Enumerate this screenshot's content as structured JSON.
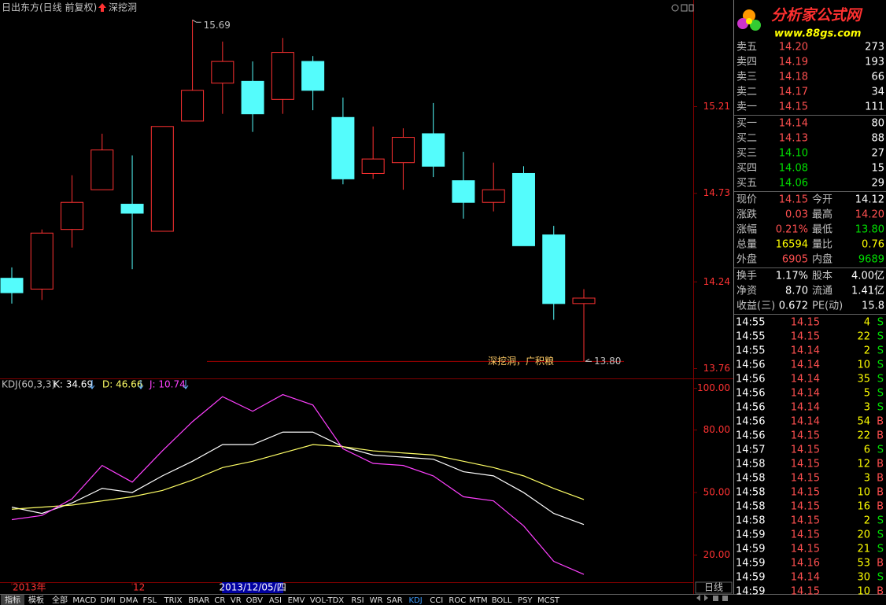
{
  "chart_data": [
    {
      "type": "candlestick",
      "title": "日出东方(日线 前复权)",
      "indicator": "深挖洞",
      "categories": [
        "2013年",
        null,
        null,
        null,
        "12",
        null,
        null,
        null,
        "2013/12/05/四",
        null,
        null,
        null,
        null,
        null,
        null,
        null,
        null,
        null,
        null,
        null
      ],
      "cursor_index": 8,
      "open": [
        14.26,
        14.2,
        14.53,
        14.75,
        14.67,
        14.52,
        15.13,
        15.34,
        15.35,
        15.25,
        15.46,
        15.15,
        14.84,
        14.9,
        15.06,
        14.8,
        14.68,
        14.84,
        14.5,
        14.12
      ],
      "high": [
        14.32,
        14.53,
        14.83,
        15.06,
        14.94,
        15.1,
        15.69,
        15.57,
        15.46,
        15.59,
        15.49,
        15.26,
        15.1,
        15.09,
        15.23,
        14.96,
        14.9,
        14.88,
        14.55,
        14.2
      ],
      "low": [
        14.12,
        14.14,
        14.43,
        14.75,
        14.31,
        14.52,
        15.13,
        15.17,
        15.07,
        15.17,
        15.19,
        14.78,
        14.81,
        14.75,
        14.82,
        14.59,
        14.63,
        14.44,
        14.03,
        13.8
      ],
      "close": [
        14.18,
        14.51,
        14.68,
        14.97,
        14.62,
        15.1,
        15.3,
        15.46,
        15.17,
        15.51,
        15.3,
        14.81,
        14.92,
        15.04,
        14.88,
        14.68,
        14.75,
        14.44,
        14.12,
        14.15
      ],
      "up_color": "#ff3232",
      "down_color": "#54fcfc",
      "ylim": [
        13.71,
        15.8
      ],
      "yticks": [
        15.21,
        14.73,
        14.24,
        13.76
      ],
      "annotations": [
        {
          "text": "15.69",
          "value": 15.69
        },
        {
          "text": "13.80",
          "value": 13.8
        },
        {
          "text": "深挖洞，广积粮"
        }
      ],
      "period": "日线"
    },
    {
      "type": "line",
      "title": "KDJ(60,3,3)",
      "series": [
        {
          "name": "K: 34.69",
          "color": "#ffffff",
          "values": [
            43,
            40,
            45,
            52,
            50,
            58,
            65,
            73,
            73,
            79,
            79,
            72,
            68,
            67,
            66,
            60,
            58,
            50,
            40,
            34.69
          ]
        },
        {
          "name": "D: 46.66",
          "color": "#ffff66",
          "values": [
            42,
            43,
            44,
            46,
            48,
            51,
            56,
            62,
            65,
            69,
            73,
            72,
            70,
            69,
            68,
            65,
            62,
            58,
            52,
            46.66
          ]
        },
        {
          "name": "J: 10.74",
          "color": "#ff40ff",
          "values": [
            37,
            39,
            47,
            63,
            55,
            70,
            84,
            96,
            89,
            97,
            92,
            71,
            64,
            63,
            58,
            48,
            46,
            34,
            17,
            10.74
          ]
        }
      ],
      "ylim": [
        7,
        104
      ],
      "yticks": [
        {
          "value": 100,
          "label": "100.00"
        },
        {
          "value": 80,
          "label": "80.00"
        },
        {
          "value": 50,
          "label": "50.00"
        },
        {
          "value": 20,
          "label": "20.00"
        }
      ]
    }
  ],
  "logo": {
    "name": "分析家公式网",
    "url": "www.88gs.com"
  },
  "order_book": {
    "asks": [
      {
        "label": "卖五",
        "price": "14.20",
        "volume": "273",
        "color": "#ff5050"
      },
      {
        "label": "卖四",
        "price": "14.19",
        "volume": "193",
        "color": "#ff5050"
      },
      {
        "label": "卖三",
        "price": "14.18",
        "volume": "66",
        "color": "#ff5050"
      },
      {
        "label": "卖二",
        "price": "14.17",
        "volume": "34",
        "color": "#ff5050"
      },
      {
        "label": "卖一",
        "price": "14.15",
        "volume": "111",
        "color": "#ff5050"
      }
    ],
    "bids": [
      {
        "label": "买一",
        "price": "14.14",
        "volume": "80",
        "color": "#ff5050"
      },
      {
        "label": "买二",
        "price": "14.13",
        "volume": "88",
        "color": "#ff5050"
      },
      {
        "label": "买三",
        "price": "14.10",
        "volume": "27",
        "color": "#00e000"
      },
      {
        "label": "买四",
        "price": "14.08",
        "volume": "15",
        "color": "#00e000"
      },
      {
        "label": "买五",
        "price": "14.06",
        "volume": "29",
        "color": "#00e000"
      }
    ]
  },
  "quote": [
    [
      {
        "label": "现价",
        "value": "14.15",
        "color": "#ff5050"
      },
      {
        "label": "今开",
        "value": "14.12",
        "color": "#ffffff"
      }
    ],
    [
      {
        "label": "涨跌",
        "value": "0.03",
        "color": "#ff5050"
      },
      {
        "label": "最高",
        "value": "14.20",
        "color": "#ff5050"
      }
    ],
    [
      {
        "label": "涨幅",
        "value": "0.21%",
        "color": "#ff5050"
      },
      {
        "label": "最低",
        "value": "13.80",
        "color": "#00e000"
      }
    ],
    [
      {
        "label": "总量",
        "value": "16594",
        "color": "#ffff00"
      },
      {
        "label": "量比",
        "value": "0.76",
        "color": "#ffff00"
      }
    ],
    [
      {
        "label": "外盘",
        "value": "6905",
        "color": "#ff5050"
      },
      {
        "label": "内盘",
        "value": "9689",
        "color": "#00e000"
      }
    ],
    [
      {
        "label": "换手",
        "value": "1.17%",
        "color": "#ffffff"
      },
      {
        "label": "股本",
        "value": "4.00亿",
        "color": "#ffffff"
      }
    ],
    [
      {
        "label": "净资",
        "value": "8.70",
        "color": "#ffffff"
      },
      {
        "label": "流通",
        "value": "1.41亿",
        "color": "#ffffff"
      }
    ],
    [
      {
        "label": "收益(三)",
        "value": "0.672",
        "color": "#ffffff"
      },
      {
        "label": "PE(动)",
        "value": "15.8",
        "color": "#ffffff"
      }
    ]
  ],
  "trades": {
    "side_colors": {
      "S": "#00e000",
      "B": "#ff5050"
    },
    "rows": [
      {
        "time": "14:55",
        "price": "14.15",
        "volume": "4",
        "side": "S"
      },
      {
        "time": "14:55",
        "price": "14.15",
        "volume": "22",
        "side": "S"
      },
      {
        "time": "14:55",
        "price": "14.14",
        "volume": "2",
        "side": "S"
      },
      {
        "time": "14:56",
        "price": "14.14",
        "volume": "10",
        "side": "S"
      },
      {
        "time": "14:56",
        "price": "14.14",
        "volume": "35",
        "side": "S"
      },
      {
        "time": "14:56",
        "price": "14.14",
        "volume": "5",
        "side": "S"
      },
      {
        "time": "14:56",
        "price": "14.14",
        "volume": "3",
        "side": "S"
      },
      {
        "time": "14:56",
        "price": "14.14",
        "volume": "54",
        "side": "B"
      },
      {
        "time": "14:56",
        "price": "14.15",
        "volume": "22",
        "side": "B"
      },
      {
        "time": "14:57",
        "price": "14.15",
        "volume": "6",
        "side": "S"
      },
      {
        "time": "14:58",
        "price": "14.15",
        "volume": "12",
        "side": "B"
      },
      {
        "time": "14:58",
        "price": "14.15",
        "volume": "3",
        "side": "B"
      },
      {
        "time": "14:58",
        "price": "14.15",
        "volume": "10",
        "side": "B"
      },
      {
        "time": "14:58",
        "price": "14.15",
        "volume": "16",
        "side": "B"
      },
      {
        "time": "14:58",
        "price": "14.15",
        "volume": "2",
        "side": "S"
      },
      {
        "time": "14:59",
        "price": "14.15",
        "volume": "20",
        "side": "S"
      },
      {
        "time": "14:59",
        "price": "14.15",
        "volume": "21",
        "side": "S"
      },
      {
        "time": "14:59",
        "price": "14.16",
        "volume": "53",
        "side": "B"
      },
      {
        "time": "14:59",
        "price": "14.14",
        "volume": "30",
        "side": "S"
      },
      {
        "time": "14:59",
        "price": "14.15",
        "volume": "10",
        "side": "B"
      }
    ]
  },
  "tabs": {
    "items": [
      "指标",
      "模板",
      "全部",
      "MACD",
      "DMI",
      "DMA",
      "FSL",
      "TRIX",
      "BRAR",
      "CR",
      "VR",
      "OBV",
      "ASI",
      "EMV",
      "VOL-TDX",
      "RSI",
      "WR",
      "SAR",
      "KDJ",
      "CCI",
      "ROC",
      "MTM",
      "BOLL",
      "PSY",
      "MCST"
    ],
    "active_index": 18
  }
}
